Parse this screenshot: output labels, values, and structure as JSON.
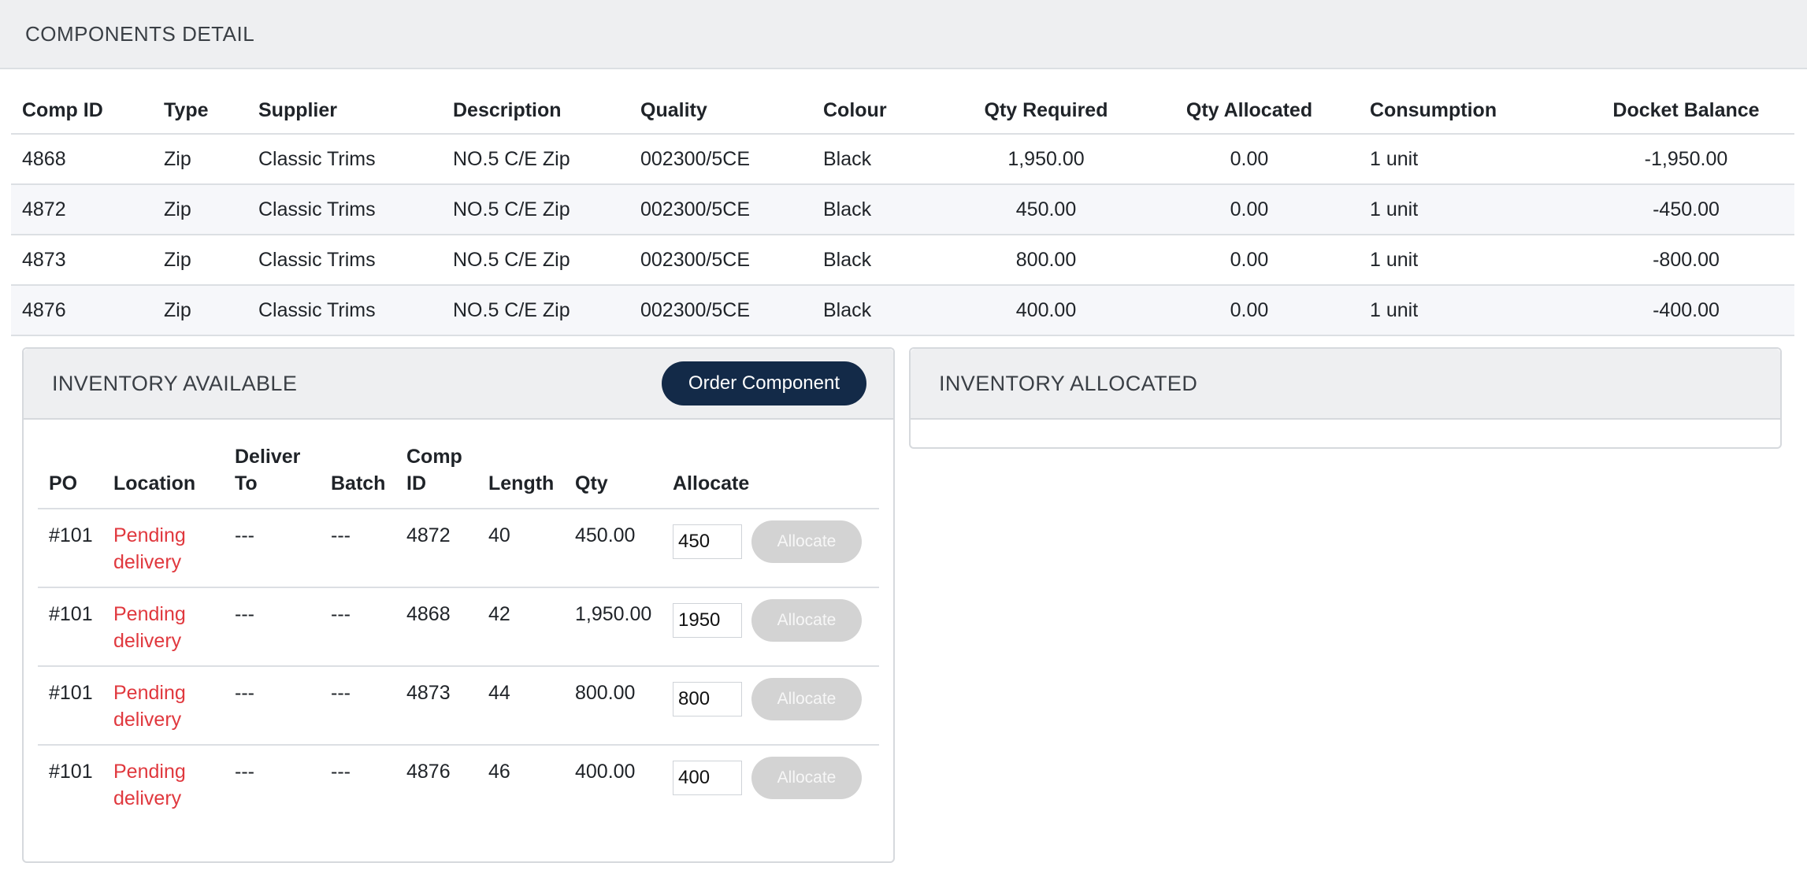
{
  "components": {
    "title": "COMPONENTS DETAIL",
    "columns": [
      "Comp ID",
      "Type",
      "Supplier",
      "Description",
      "Quality",
      "Colour",
      "Qty Required",
      "Qty Allocated",
      "Consumption",
      "Docket Balance"
    ],
    "rows": [
      {
        "comp_id": "4868",
        "type": "Zip",
        "supplier": "Classic Trims",
        "description": "NO.5 C/E Zip",
        "quality": "002300/5CE",
        "colour": "Black",
        "qty_required": "1,950.00",
        "qty_allocated": "0.00",
        "consumption": "1 unit",
        "docket_balance": "-1,950.00"
      },
      {
        "comp_id": "4872",
        "type": "Zip",
        "supplier": "Classic Trims",
        "description": "NO.5 C/E Zip",
        "quality": "002300/5CE",
        "colour": "Black",
        "qty_required": "450.00",
        "qty_allocated": "0.00",
        "consumption": "1 unit",
        "docket_balance": "-450.00"
      },
      {
        "comp_id": "4873",
        "type": "Zip",
        "supplier": "Classic Trims",
        "description": "NO.5 C/E Zip",
        "quality": "002300/5CE",
        "colour": "Black",
        "qty_required": "800.00",
        "qty_allocated": "0.00",
        "consumption": "1 unit",
        "docket_balance": "-800.00"
      },
      {
        "comp_id": "4876",
        "type": "Zip",
        "supplier": "Classic Trims",
        "description": "NO.5 C/E Zip",
        "quality": "002300/5CE",
        "colour": "Black",
        "qty_required": "400.00",
        "qty_allocated": "0.00",
        "consumption": "1 unit",
        "docket_balance": "-400.00"
      }
    ]
  },
  "inventory_available": {
    "title": "INVENTORY AVAILABLE",
    "order_button": "Order Component",
    "columns": {
      "po": "PO",
      "location": "Location",
      "deliver_to": "Deliver To",
      "batch": "Batch",
      "comp_id": "Comp ID",
      "length": "Length",
      "qty": "Qty",
      "allocate": "Allocate"
    },
    "rows": [
      {
        "po": "#101",
        "location": "Pending delivery",
        "deliver_to": "---",
        "batch": "---",
        "comp_id": "4872",
        "length": "40",
        "qty": "450.00",
        "allocate_value": "450",
        "allocate_button": "Allocate"
      },
      {
        "po": "#101",
        "location": "Pending delivery",
        "deliver_to": "---",
        "batch": "---",
        "comp_id": "4868",
        "length": "42",
        "qty": "1,950.00",
        "allocate_value": "1950",
        "allocate_button": "Allocate"
      },
      {
        "po": "#101",
        "location": "Pending delivery",
        "deliver_to": "---",
        "batch": "---",
        "comp_id": "4873",
        "length": "44",
        "qty": "800.00",
        "allocate_value": "800",
        "allocate_button": "Allocate"
      },
      {
        "po": "#101",
        "location": "Pending delivery",
        "deliver_to": "---",
        "batch": "---",
        "comp_id": "4876",
        "length": "46",
        "qty": "400.00",
        "allocate_value": "400",
        "allocate_button": "Allocate"
      }
    ]
  },
  "inventory_allocated": {
    "title": "INVENTORY ALLOCATED"
  },
  "colors": {
    "primary_button": "#132a48",
    "pending_text": "#e0383e",
    "header_bg": "#eeeff1",
    "disabled_button": "#d3d3d3"
  }
}
